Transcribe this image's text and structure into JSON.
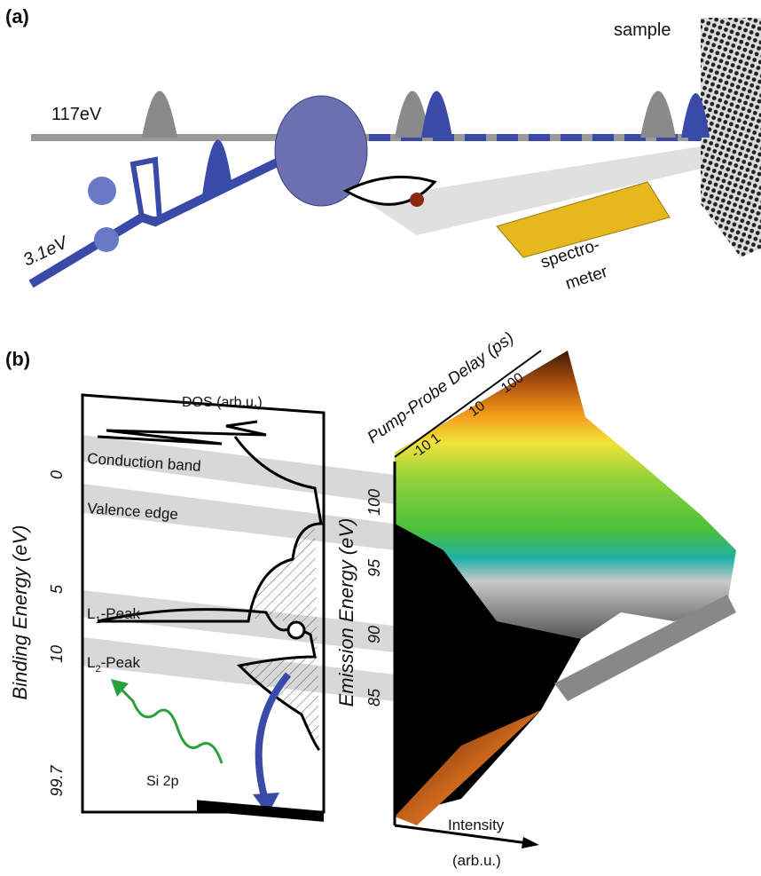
{
  "panel_a": {
    "label": "(a)",
    "sample": "sample",
    "probe_energy": "117eV",
    "pump_energy": "3.1eV",
    "spectrometer": [
      "spectro-",
      "meter"
    ]
  },
  "panel_b": {
    "label": "(b)",
    "dos_label": "DOS (arb.u.)",
    "bands": {
      "conduction": "Conduction band",
      "valence": "Valence edge",
      "l1": {
        "main": "L",
        "sub": "1",
        "rest": "-Peak"
      },
      "l2": {
        "main": "L",
        "sub": "2",
        "rest": "-Peak"
      }
    },
    "core_level": "Si 2p",
    "binding_axis": {
      "title": "Binding Energy (eV)",
      "ticks": [
        "0",
        "5",
        "10",
        "99.7"
      ]
    },
    "emission_axis": {
      "title": "Emission Energy (eV)",
      "ticks": [
        "100",
        "95",
        "90",
        "85"
      ]
    },
    "delay_axis": {
      "title": "Pump-Probe Delay (ps)",
      "ticks": [
        "-10",
        "1",
        "10",
        "100"
      ]
    },
    "intensity_axis": {
      "title": "Intensity",
      "unit": "(arb.u.)"
    }
  }
}
